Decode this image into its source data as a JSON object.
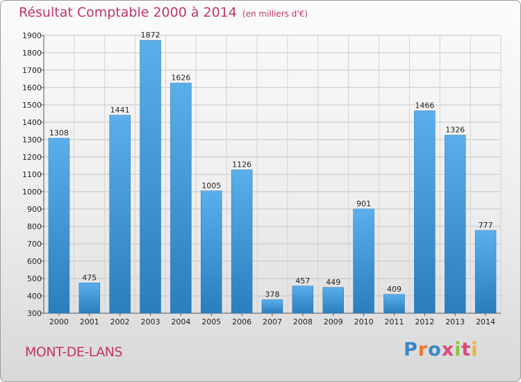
{
  "title": {
    "main": "Résultat Comptable 2000 à 2014",
    "unit": "(en milliers d'€)"
  },
  "commune": "MONT-DE-LANS",
  "logo": {
    "text": "Proxiti",
    "letter_colors": [
      "#3a86c8",
      "#e8792b",
      "#3a86c8",
      "#d94b7b",
      "#8cc63f",
      "#d94b7b",
      "#e8b92b"
    ]
  },
  "colors": {
    "accent": "#c0356b",
    "bar_light": "#5aaeea",
    "bar_dark": "#2a7ebe"
  },
  "chart_data": {
    "type": "bar",
    "title": "Résultat Comptable 2000 à 2014",
    "subtitle": "(en milliers d'€)",
    "categories": [
      "2000",
      "2001",
      "2002",
      "2003",
      "2004",
      "2005",
      "2006",
      "2007",
      "2008",
      "2009",
      "2010",
      "2011",
      "2012",
      "2013",
      "2014"
    ],
    "values": [
      1308,
      475,
      1441,
      1872,
      1626,
      1005,
      1126,
      378,
      457,
      449,
      901,
      409,
      1466,
      1326,
      777
    ],
    "xlabel": "",
    "ylabel": "",
    "ylim": [
      300,
      1900
    ],
    "yticks": [
      300,
      400,
      500,
      600,
      700,
      800,
      900,
      1000,
      1100,
      1200,
      1300,
      1400,
      1500,
      1600,
      1700,
      1800,
      1900
    ],
    "grid": true,
    "legend": "none"
  }
}
